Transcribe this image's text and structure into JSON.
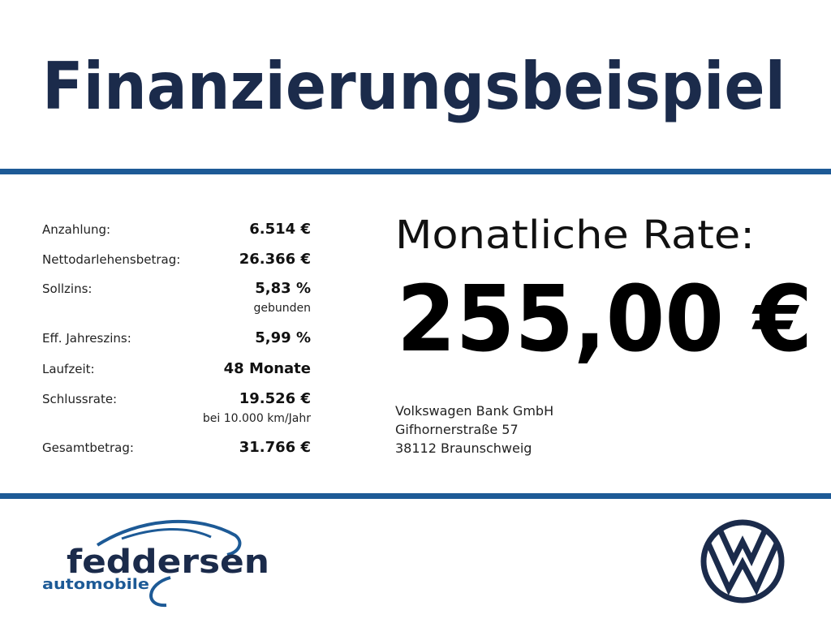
{
  "header": {
    "title": "Finanzierungsbeispiel"
  },
  "table": {
    "rows": [
      {
        "label": "Anzahlung:",
        "value": "6.514 €"
      },
      {
        "label": "Nettodarlehensbetrag:",
        "value": "26.366 €"
      },
      {
        "label": "Sollzins:",
        "value": "5,83 %",
        "note": "gebunden"
      },
      {
        "label": "Eff. Jahreszins:",
        "value": "5,99 %"
      },
      {
        "label": "Laufzeit:",
        "value": "48 Monate"
      },
      {
        "label": "Schlussrate:",
        "value": "19.526 €",
        "note": "bei 10.000 km/Jahr"
      },
      {
        "label": "Gesamtbetrag:",
        "value": "31.766 €"
      }
    ]
  },
  "rate": {
    "label": "Monatliche Rate:",
    "value": "255,00 €"
  },
  "lender": {
    "lines": [
      "Volkswagen Bank GmbH",
      "Gifhornerstraße 57",
      "38112 Braunschweig"
    ]
  },
  "dealer_logo": {
    "name": "feddersen",
    "tagline": "automobile"
  }
}
